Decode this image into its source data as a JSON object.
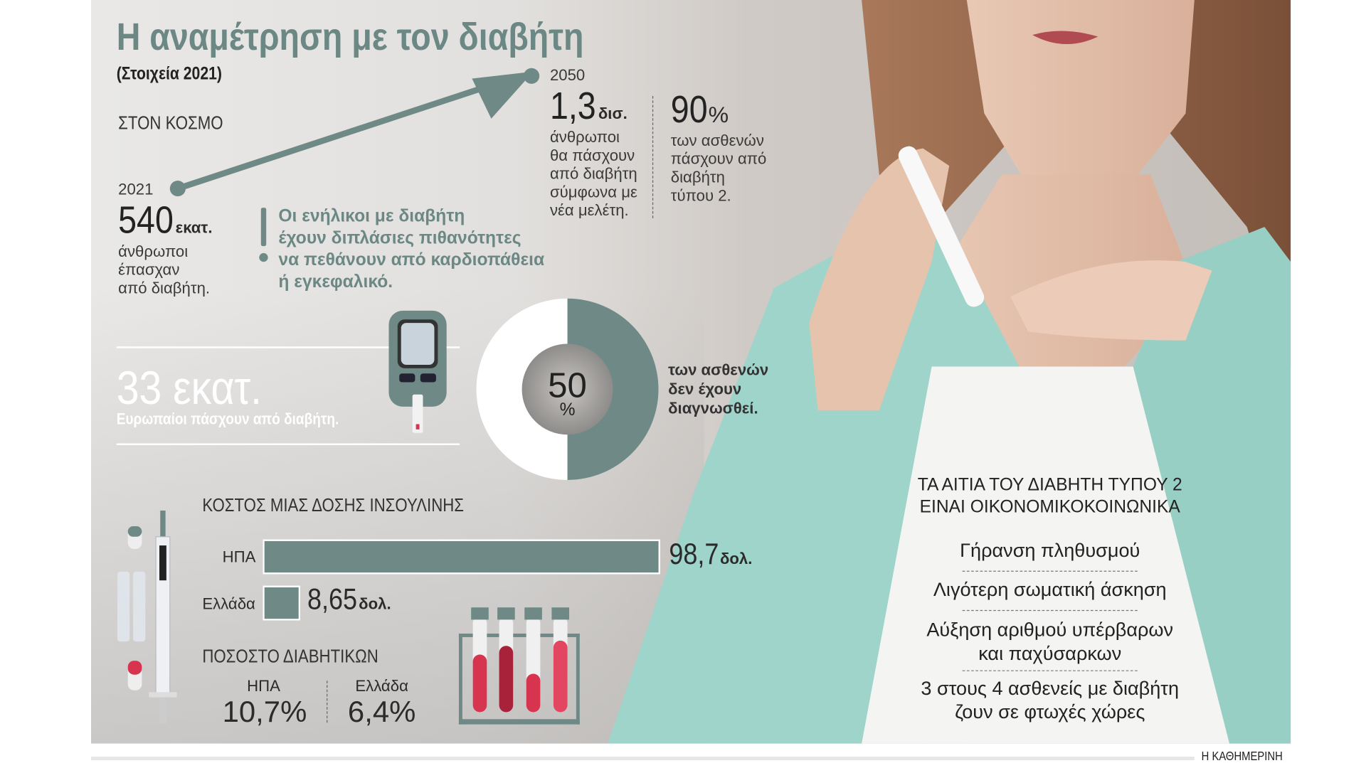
{
  "title": "Η αναμέτρηση με τον διαβήτη",
  "subtitle": "(Στοιχεία 2021)",
  "world": {
    "label": "ΣΤΟΝ ΚΟΣΜΟ",
    "y2021": {
      "year": "2021",
      "value": "540",
      "unit": "εκατ.",
      "desc": [
        "άνθρωποι",
        "έπασχαν",
        "από διαβήτη."
      ]
    },
    "y2050": {
      "year": "2050",
      "value": "1,3",
      "unit": "δισ.",
      "desc": [
        "άνθρωποι",
        "θα πάσχουν",
        "από διαβήτη",
        "σύμφωνα με",
        "νέα μελέτη."
      ]
    },
    "type2": {
      "value": "90",
      "unit": "%",
      "desc": [
        "των ασθενών",
        "πάσχουν από",
        "διαβήτη",
        "τύπου 2."
      ]
    }
  },
  "warning": {
    "icon": "exclamation-icon",
    "lines": [
      "Οι ενήλικοι με διαβήτη",
      "έχουν διπλάσιες πιθανότητες",
      "να πεθάνουν από καρδιοπάθεια",
      "ή εγκεφαλικό."
    ]
  },
  "europe": {
    "value": "33 εκατ.",
    "desc": "Ευρωπαίοι πάσχουν από διαβήτη.",
    "icon": "glucose-meter-icon"
  },
  "undiagnosed": {
    "value": "50",
    "unit": "%",
    "percent": 50,
    "desc": [
      "των ασθενών",
      "δεν έχουν",
      "διαγνωσθεί."
    ]
  },
  "insulin": {
    "title": "ΚΟΣΤΟΣ ΜΙΑΣ ΔΟΣΗΣ ΙΝΣΟΥΛΙΝΗΣ",
    "rows": [
      {
        "country": "ΗΠΑ",
        "value": 98.7,
        "label": "98,7",
        "unit": "δολ."
      },
      {
        "country": "Ελλάδα",
        "value": 8.65,
        "label": "8,65",
        "unit": "δολ."
      }
    ]
  },
  "prevalence": {
    "title": "ΠΟΣΟΣΤΟ ΔΙΑΒΗΤΙΚΩΝ",
    "items": [
      {
        "country": "ΗΠΑ",
        "value": "10,7%"
      },
      {
        "country": "Ελλάδα",
        "value": "6,4%"
      }
    ]
  },
  "causes": {
    "title": [
      "ΤΑ ΑΙΤΙΑ ΤΟΥ ΔΙΑΒΗΤΗ ΤΥΠΟΥ 2",
      "ΕΙΝΑΙ ΟΙΚΟΝΟΜΙΚΟΚΟΙΝΩΝΙΚΑ"
    ],
    "items": [
      [
        "Γήρανση πληθυσμού"
      ],
      [
        "Λιγότερη σωματική άσκηση"
      ],
      [
        "Αύξηση αριθμού υπέρβαρων",
        "και παχύσαρκων"
      ],
      [
        "3 στους 4 ασθενείς με διαβήτη",
        "ζουν σε φτωχές χώρες"
      ]
    ]
  },
  "credit": "Η ΚΑΘΗΜΕΡΙΝΗ",
  "colors": {
    "accent": "#6f8a86",
    "blood": "#d7354f",
    "cardigan": "#9fd4ca"
  }
}
